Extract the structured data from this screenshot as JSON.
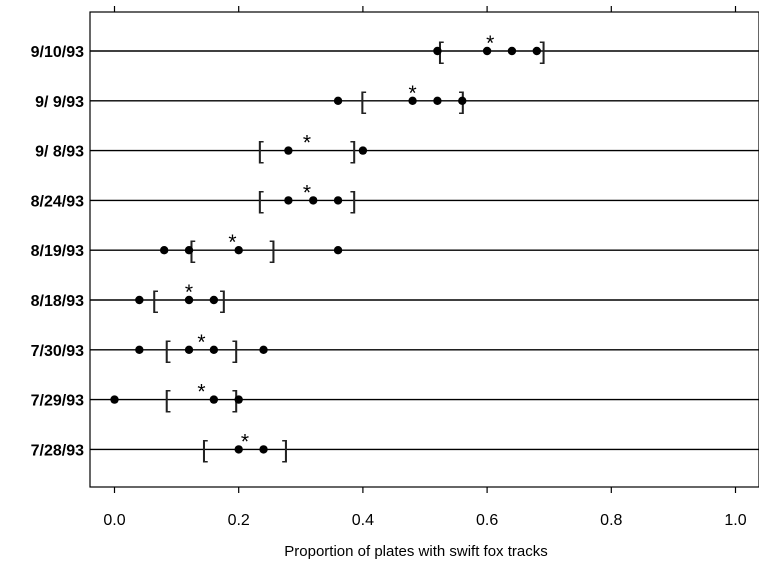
{
  "chart_data": {
    "type": "scatter",
    "xlabel": "Proportion of plates with swift fox tracks",
    "ylabel": "",
    "xlim": [
      -0.04,
      1.04
    ],
    "x_ticks": [
      0.0,
      0.2,
      0.4,
      0.6,
      0.8,
      1.0
    ],
    "x_tick_labels": [
      "0.0",
      "0.2",
      "0.4",
      "0.6",
      "0.8",
      "1.0"
    ],
    "grid": false,
    "legend": "none",
    "marker_symbols": {
      "point": "●",
      "mean": "*",
      "ci_left": "[",
      "ci_right": "]"
    },
    "rows": [
      {
        "label": "9/10/93",
        "points": [
          0.52,
          0.6,
          0.64,
          0.68
        ],
        "mean": 0.605,
        "ci": [
          0.525,
          0.69
        ]
      },
      {
        "label": "9/ 9/93",
        "points": [
          0.36,
          0.48,
          0.52,
          0.56
        ],
        "mean": 0.48,
        "ci": [
          0.4,
          0.56
        ]
      },
      {
        "label": "9/ 8/93",
        "points": [
          0.28,
          0.4
        ],
        "mean": 0.31,
        "ci": [
          0.235,
          0.385
        ]
      },
      {
        "label": "8/24/93",
        "points": [
          0.28,
          0.32,
          0.36
        ],
        "mean": 0.31,
        "ci": [
          0.235,
          0.385
        ]
      },
      {
        "label": "8/19/93",
        "points": [
          0.08,
          0.12,
          0.2,
          0.36
        ],
        "mean": 0.19,
        "ci": [
          0.125,
          0.255
        ]
      },
      {
        "label": "8/18/93",
        "points": [
          0.04,
          0.12,
          0.16
        ],
        "mean": 0.12,
        "ci": [
          0.065,
          0.175
        ]
      },
      {
        "label": "7/30/93",
        "points": [
          0.04,
          0.12,
          0.16,
          0.24
        ],
        "mean": 0.14,
        "ci": [
          0.085,
          0.195
        ]
      },
      {
        "label": "7/29/93",
        "points": [
          0.0,
          0.16,
          0.2
        ],
        "mean": 0.14,
        "ci": [
          0.085,
          0.195
        ]
      },
      {
        "label": "7/28/93",
        "points": [
          0.2,
          0.24
        ],
        "mean": 0.21,
        "ci": [
          0.145,
          0.275
        ]
      }
    ]
  }
}
